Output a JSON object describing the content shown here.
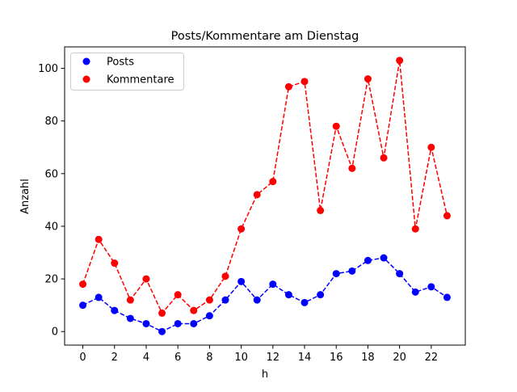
{
  "chart_data": {
    "type": "line",
    "title": "Posts/Kommentare am Dienstag",
    "xlabel": "h",
    "ylabel": "Anzahl",
    "x": [
      0,
      1,
      2,
      3,
      4,
      5,
      6,
      7,
      8,
      9,
      10,
      11,
      12,
      13,
      14,
      15,
      16,
      17,
      18,
      19,
      20,
      21,
      22,
      23
    ],
    "xticks": [
      0,
      2,
      4,
      6,
      8,
      10,
      12,
      14,
      16,
      18,
      20,
      22
    ],
    "xtick_labels": [
      "0",
      "2",
      "4",
      "6",
      "8",
      "10",
      "12",
      "14",
      "16",
      "18",
      "20",
      "22"
    ],
    "yticks": [
      0,
      20,
      40,
      60,
      80,
      100
    ],
    "ytick_labels": [
      "0",
      "20",
      "40",
      "60",
      "80",
      "100"
    ],
    "xlim": [
      -1.15,
      24.15
    ],
    "ylim": [
      -5.15,
      108.15
    ],
    "grid": false,
    "legend_position": "top-left",
    "series": [
      {
        "name": "Posts",
        "color": "#0000ff",
        "line_style": "dashed",
        "marker": "circle",
        "values": [
          10,
          13,
          8,
          5,
          3,
          0,
          3,
          3,
          6,
          12,
          19,
          12,
          18,
          14,
          11,
          14,
          22,
          23,
          27,
          28,
          22,
          15,
          17,
          13
        ]
      },
      {
        "name": "Kommentare",
        "color": "#ff0000",
        "line_style": "dashed",
        "marker": "circle",
        "values": [
          18,
          35,
          26,
          12,
          20,
          7,
          14,
          8,
          12,
          21,
          39,
          52,
          57,
          93,
          95,
          46,
          78,
          62,
          96,
          66,
          103,
          39,
          70,
          44
        ]
      }
    ]
  }
}
